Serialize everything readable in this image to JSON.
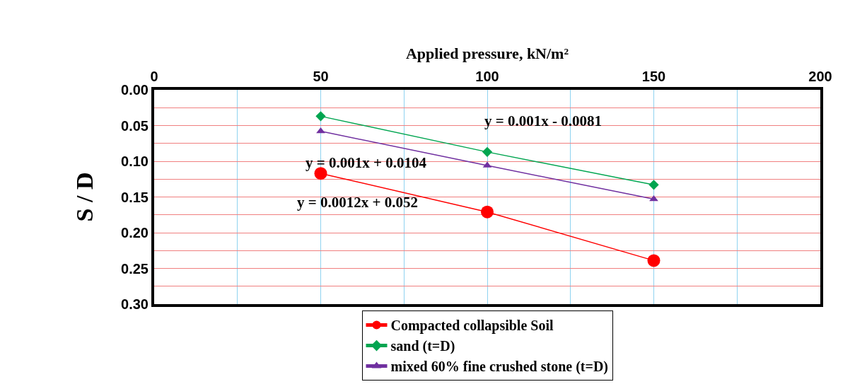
{
  "chart_data": {
    "type": "line",
    "xlabel": "Applied pressure, kN/m²",
    "ylabel": "S / D",
    "x": [
      50,
      100,
      150
    ],
    "xlim": [
      0,
      200
    ],
    "xticks": [
      0,
      {
        "value": 25,
        "label": null
      },
      50,
      {
        "value": 75,
        "label": null
      },
      100,
      {
        "value": 125,
        "label": null
      },
      150,
      {
        "value": 175,
        "label": null
      },
      200
    ],
    "ylim": [
      0.3,
      0
    ],
    "yticks": [
      {
        "value": 0,
        "label": "0.00"
      },
      {
        "value": 0.025,
        "label": null
      },
      {
        "value": 0.05,
        "label": "0.05"
      },
      {
        "value": 0.075,
        "label": null
      },
      {
        "value": 0.1,
        "label": "0.10"
      },
      {
        "value": 0.125,
        "label": null
      },
      {
        "value": 0.15,
        "label": "0.15"
      },
      {
        "value": 0.175,
        "label": null
      },
      {
        "value": 0.2,
        "label": "0.20"
      },
      {
        "value": 0.225,
        "label": null
      },
      {
        "value": 0.25,
        "label": "0.25"
      },
      {
        "value": 0.275,
        "label": null
      },
      {
        "value": 0.3,
        "label": "0.30"
      }
    ],
    "grid": true,
    "legend": "bottom",
    "line_style": "solid",
    "series": [
      {
        "name": "Compacted collapsible Soil",
        "color": "#ff0000",
        "marker": "circle",
        "values": [
          0.117,
          0.171,
          0.239
        ]
      },
      {
        "name": "sand (t=D)",
        "color": "#00a550",
        "marker": "diamond",
        "values": [
          0.037,
          0.087,
          0.133
        ]
      },
      {
        "name": "mixed 60% fine crushed stone (t=D)",
        "color": "#7030a0",
        "marker": "triangle",
        "values": [
          0.058,
          0.106,
          0.153
        ]
      }
    ],
    "annotations": [
      "y = 0.001x - 0.0081",
      "y = 0.001x + 0.0104",
      "y = 0.0012x + 0.052"
    ]
  }
}
